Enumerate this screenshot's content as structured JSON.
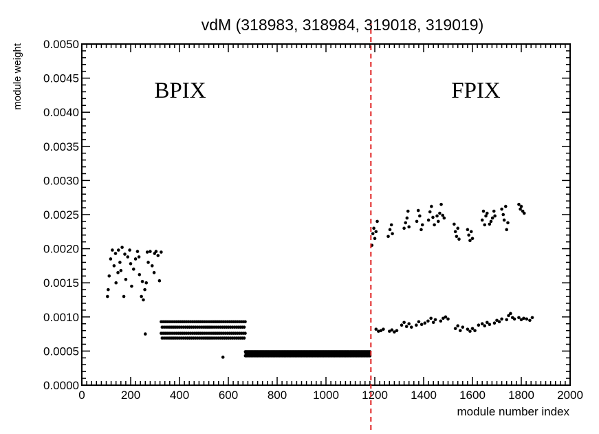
{
  "chart_data": {
    "type": "scatter",
    "title": "vdM (318983, 318984, 319018, 319019)",
    "xlabel": "module number index",
    "ylabel": "module weight",
    "xlim": [
      0,
      2000
    ],
    "ylim": [
      0,
      0.005
    ],
    "x_major_ticks": [
      0,
      200,
      400,
      600,
      800,
      1000,
      1200,
      1400,
      1600,
      1800,
      2000
    ],
    "x_tick_labels": [
      "0",
      "200",
      "400",
      "600",
      "800",
      "1000",
      "1200",
      "1400",
      "1600",
      "1800",
      "2000"
    ],
    "y_major_ticks": [
      0,
      0.0005,
      0.001,
      0.0015,
      0.002,
      0.0025,
      0.003,
      0.0035,
      0.004,
      0.0045,
      0.005
    ],
    "y_tick_labels": [
      "0.0000",
      "0.0005",
      "0.0010",
      "0.0015",
      "0.0020",
      "0.0025",
      "0.0030",
      "0.0035",
      "0.0040",
      "0.0045",
      "0.0050"
    ],
    "grid": false,
    "divider": {
      "x": 1184,
      "color": "#e02020",
      "style": "dashed"
    },
    "annotations": [
      {
        "text": "BPIX",
        "x": 280,
        "y": 0.0043
      },
      {
        "text": "FPIX",
        "x": 1635,
        "y": 0.0043
      }
    ],
    "marker_color": "#000000",
    "series": [
      {
        "points": [
          [
            105,
            0.0013
          ],
          [
            112,
            0.0016
          ],
          [
            118,
            0.00185
          ],
          [
            125,
            0.00198
          ],
          [
            132,
            0.00175
          ],
          [
            140,
            0.0015
          ],
          [
            148,
            0.00165
          ],
          [
            156,
            0.0018
          ],
          [
            165,
            0.00202
          ],
          [
            172,
            0.0013
          ],
          [
            180,
            0.00155
          ],
          [
            188,
            0.00188
          ],
          [
            196,
            0.00198
          ],
          [
            204,
            0.00145
          ],
          [
            212,
            0.0017
          ],
          [
            220,
            0.00185
          ],
          [
            228,
            0.00196
          ],
          [
            236,
            0.00162
          ],
          [
            244,
            0.0013
          ],
          [
            252,
            0.00125
          ],
          [
            258,
            0.0014
          ],
          [
            264,
            0.0015
          ],
          [
            272,
            0.0018
          ],
          [
            280,
            0.00196
          ],
          [
            288,
            0.00175
          ],
          [
            296,
            0.00165
          ],
          [
            304,
            0.00196
          ],
          [
            312,
            0.0019
          ],
          [
            318,
            0.00153
          ],
          [
            325,
            0.00195
          ],
          [
            108,
            0.0014
          ],
          [
            150,
            0.00198
          ],
          [
            176,
            0.00192
          ],
          [
            200,
            0.00178
          ],
          [
            234,
            0.00188
          ],
          [
            268,
            0.00195
          ],
          [
            298,
            0.00193
          ],
          [
            160,
            0.00168
          ],
          [
            248,
            0.00152
          ],
          [
            138,
            0.00193
          ],
          [
            260,
            0.00075
          ],
          [
            578,
            0.00041
          ]
        ]
      },
      {
        "row_bands": [
          {
            "x_start": 325,
            "x_end": 670,
            "step": 8,
            "y_values": [
              0.00093,
              0.00085,
              0.00076,
              0.00069
            ]
          },
          {
            "x_start": 670,
            "x_end": 1180,
            "step": 5,
            "y_values": [
              0.00049,
              0.00046,
              0.00043
            ]
          }
        ]
      },
      {
        "points": [
          [
            1188,
            0.00205
          ],
          [
            1192,
            0.00222
          ],
          [
            1196,
            0.0023
          ],
          [
            1200,
            0.00215
          ],
          [
            1205,
            0.00225
          ],
          [
            1210,
            0.0024
          ],
          [
            1255,
            0.00218
          ],
          [
            1262,
            0.00228
          ],
          [
            1268,
            0.00235
          ],
          [
            1272,
            0.00222
          ],
          [
            1320,
            0.0023
          ],
          [
            1326,
            0.00238
          ],
          [
            1332,
            0.00245
          ],
          [
            1336,
            0.00255
          ],
          [
            1340,
            0.00232
          ],
          [
            1372,
            0.0024
          ],
          [
            1378,
            0.00256
          ],
          [
            1384,
            0.00248
          ],
          [
            1390,
            0.00228
          ],
          [
            1395,
            0.00235
          ],
          [
            1420,
            0.00242
          ],
          [
            1426,
            0.00254
          ],
          [
            1432,
            0.00262
          ],
          [
            1438,
            0.00246
          ],
          [
            1444,
            0.00235
          ],
          [
            1455,
            0.00248
          ],
          [
            1460,
            0.0024
          ],
          [
            1466,
            0.00252
          ],
          [
            1472,
            0.00265
          ],
          [
            1478,
            0.00249
          ],
          [
            1484,
            0.00245
          ],
          [
            1525,
            0.00236
          ],
          [
            1530,
            0.00225
          ],
          [
            1535,
            0.00218
          ],
          [
            1540,
            0.0023
          ],
          [
            1545,
            0.00214
          ],
          [
            1580,
            0.00228
          ],
          [
            1585,
            0.0022
          ],
          [
            1590,
            0.00212
          ],
          [
            1595,
            0.00225
          ],
          [
            1600,
            0.00215
          ],
          [
            1640,
            0.00242
          ],
          [
            1645,
            0.00255
          ],
          [
            1650,
            0.00235
          ],
          [
            1655,
            0.00248
          ],
          [
            1660,
            0.00252
          ],
          [
            1670,
            0.00236
          ],
          [
            1676,
            0.0024
          ],
          [
            1682,
            0.00245
          ],
          [
            1688,
            0.00255
          ],
          [
            1692,
            0.00248
          ],
          [
            1720,
            0.00258
          ],
          [
            1726,
            0.0025
          ],
          [
            1730,
            0.00242
          ],
          [
            1736,
            0.00262
          ],
          [
            1740,
            0.00228
          ],
          [
            1745,
            0.00238
          ],
          [
            1790,
            0.00265
          ],
          [
            1796,
            0.00258
          ],
          [
            1800,
            0.00262
          ],
          [
            1806,
            0.00255
          ],
          [
            1812,
            0.00252
          ]
        ]
      },
      {
        "points": [
          [
            1205,
            0.00082
          ],
          [
            1215,
            0.00079
          ],
          [
            1225,
            0.0008
          ],
          [
            1235,
            0.00082
          ],
          [
            1260,
            0.00079
          ],
          [
            1270,
            0.00081
          ],
          [
            1280,
            0.00078
          ],
          [
            1290,
            0.0008
          ],
          [
            1310,
            0.00088
          ],
          [
            1320,
            0.00092
          ],
          [
            1330,
            0.00086
          ],
          [
            1340,
            0.0009
          ],
          [
            1350,
            0.00085
          ],
          [
            1370,
            0.00088
          ],
          [
            1380,
            0.00093
          ],
          [
            1392,
            0.00089
          ],
          [
            1405,
            0.00091
          ],
          [
            1418,
            0.00094
          ],
          [
            1430,
            0.00098
          ],
          [
            1440,
            0.00092
          ],
          [
            1448,
            0.00096
          ],
          [
            1470,
            0.00094
          ],
          [
            1480,
            0.00098
          ],
          [
            1490,
            0.001
          ],
          [
            1500,
            0.00097
          ],
          [
            1530,
            0.00083
          ],
          [
            1540,
            0.00087
          ],
          [
            1550,
            0.0008
          ],
          [
            1560,
            0.00085
          ],
          [
            1580,
            0.00082
          ],
          [
            1590,
            0.00079
          ],
          [
            1600,
            0.00083
          ],
          [
            1610,
            0.0008
          ],
          [
            1625,
            0.00088
          ],
          [
            1640,
            0.0009
          ],
          [
            1650,
            0.00087
          ],
          [
            1660,
            0.00092
          ],
          [
            1670,
            0.00089
          ],
          [
            1690,
            0.00091
          ],
          [
            1700,
            0.00095
          ],
          [
            1710,
            0.00093
          ],
          [
            1720,
            0.00097
          ],
          [
            1740,
            0.00096
          ],
          [
            1748,
            0.00102
          ],
          [
            1756,
            0.00105
          ],
          [
            1764,
            0.00099
          ],
          [
            1772,
            0.00097
          ],
          [
            1790,
            0.00099
          ],
          [
            1800,
            0.00096
          ],
          [
            1810,
            0.00098
          ],
          [
            1822,
            0.00097
          ],
          [
            1835,
            0.00095
          ],
          [
            1845,
            0.00099
          ]
        ]
      }
    ]
  }
}
